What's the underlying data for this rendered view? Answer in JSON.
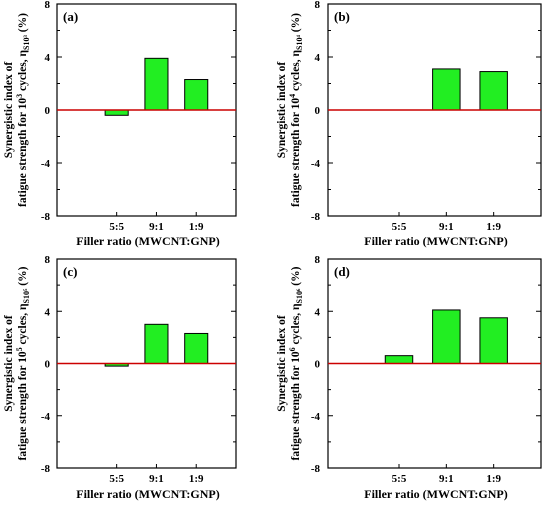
{
  "colors": {
    "bar_fill": "#22ee22",
    "bar_stroke": "#000000",
    "zero_line": "#cc0000",
    "axis": "#000000"
  },
  "chart_data": [
    {
      "panel": "(a)",
      "type": "bar",
      "categories": [
        "5:5",
        "9:1",
        "1:9"
      ],
      "values": [
        -0.4,
        3.9,
        2.3
      ],
      "xlabel": "Filler ratio (MWCNT:GNP)",
      "ylabel_line1": "Synergistic index of",
      "ylabel_line2": "fatigue strength for 10",
      "ylabel_exp": "3",
      "ylabel_rest": " cycles, η",
      "ylabel_sub": "S10³",
      "ylabel_unit": " (%)",
      "ylim": [
        -8,
        8
      ],
      "yticks": [
        "-8",
        "-4",
        "0",
        "4",
        "8"
      ]
    },
    {
      "panel": "(b)",
      "type": "bar",
      "categories": [
        "5:5",
        "9:1",
        "1:9"
      ],
      "values": [
        0,
        3.1,
        2.9
      ],
      "xlabel": "Filler ratio (MWCNT:GNP)",
      "ylabel_line1": "Synergistic index of",
      "ylabel_line2": "fatigue strength for 10",
      "ylabel_exp": "4",
      "ylabel_rest": " cycles, η",
      "ylabel_sub": "S10⁴",
      "ylabel_unit": " (%)",
      "ylim": [
        -8,
        8
      ],
      "yticks": [
        "-8",
        "-4",
        "0",
        "4",
        "8"
      ]
    },
    {
      "panel": "(c)",
      "type": "bar",
      "categories": [
        "5:5",
        "9:1",
        "1:9"
      ],
      "values": [
        -0.2,
        3.0,
        2.3
      ],
      "xlabel": "Filler ratio (MWCNT:GNP)",
      "ylabel_line1": "Synergistic index of",
      "ylabel_line2": "fatigue strength for 10",
      "ylabel_exp": "5",
      "ylabel_rest": " cycles, η",
      "ylabel_sub": "S10⁵",
      "ylabel_unit": " (%)",
      "ylim": [
        -8,
        8
      ],
      "yticks": [
        "-8",
        "-4",
        "0",
        "4",
        "8"
      ]
    },
    {
      "panel": "(d)",
      "type": "bar",
      "categories": [
        "5:5",
        "9:1",
        "1:9"
      ],
      "values": [
        0.6,
        4.1,
        3.5
      ],
      "xlabel": "Filler ratio (MWCNT:GNP)",
      "ylabel_line1": "Synergistic index of",
      "ylabel_line2": "fatigue strength for 10",
      "ylabel_exp": "6",
      "ylabel_rest": " cycles, η",
      "ylabel_sub": "S10⁶",
      "ylabel_unit": " (%)",
      "ylim": [
        -8,
        8
      ],
      "yticks": [
        "-8",
        "-4",
        "0",
        "4",
        "8"
      ]
    }
  ]
}
